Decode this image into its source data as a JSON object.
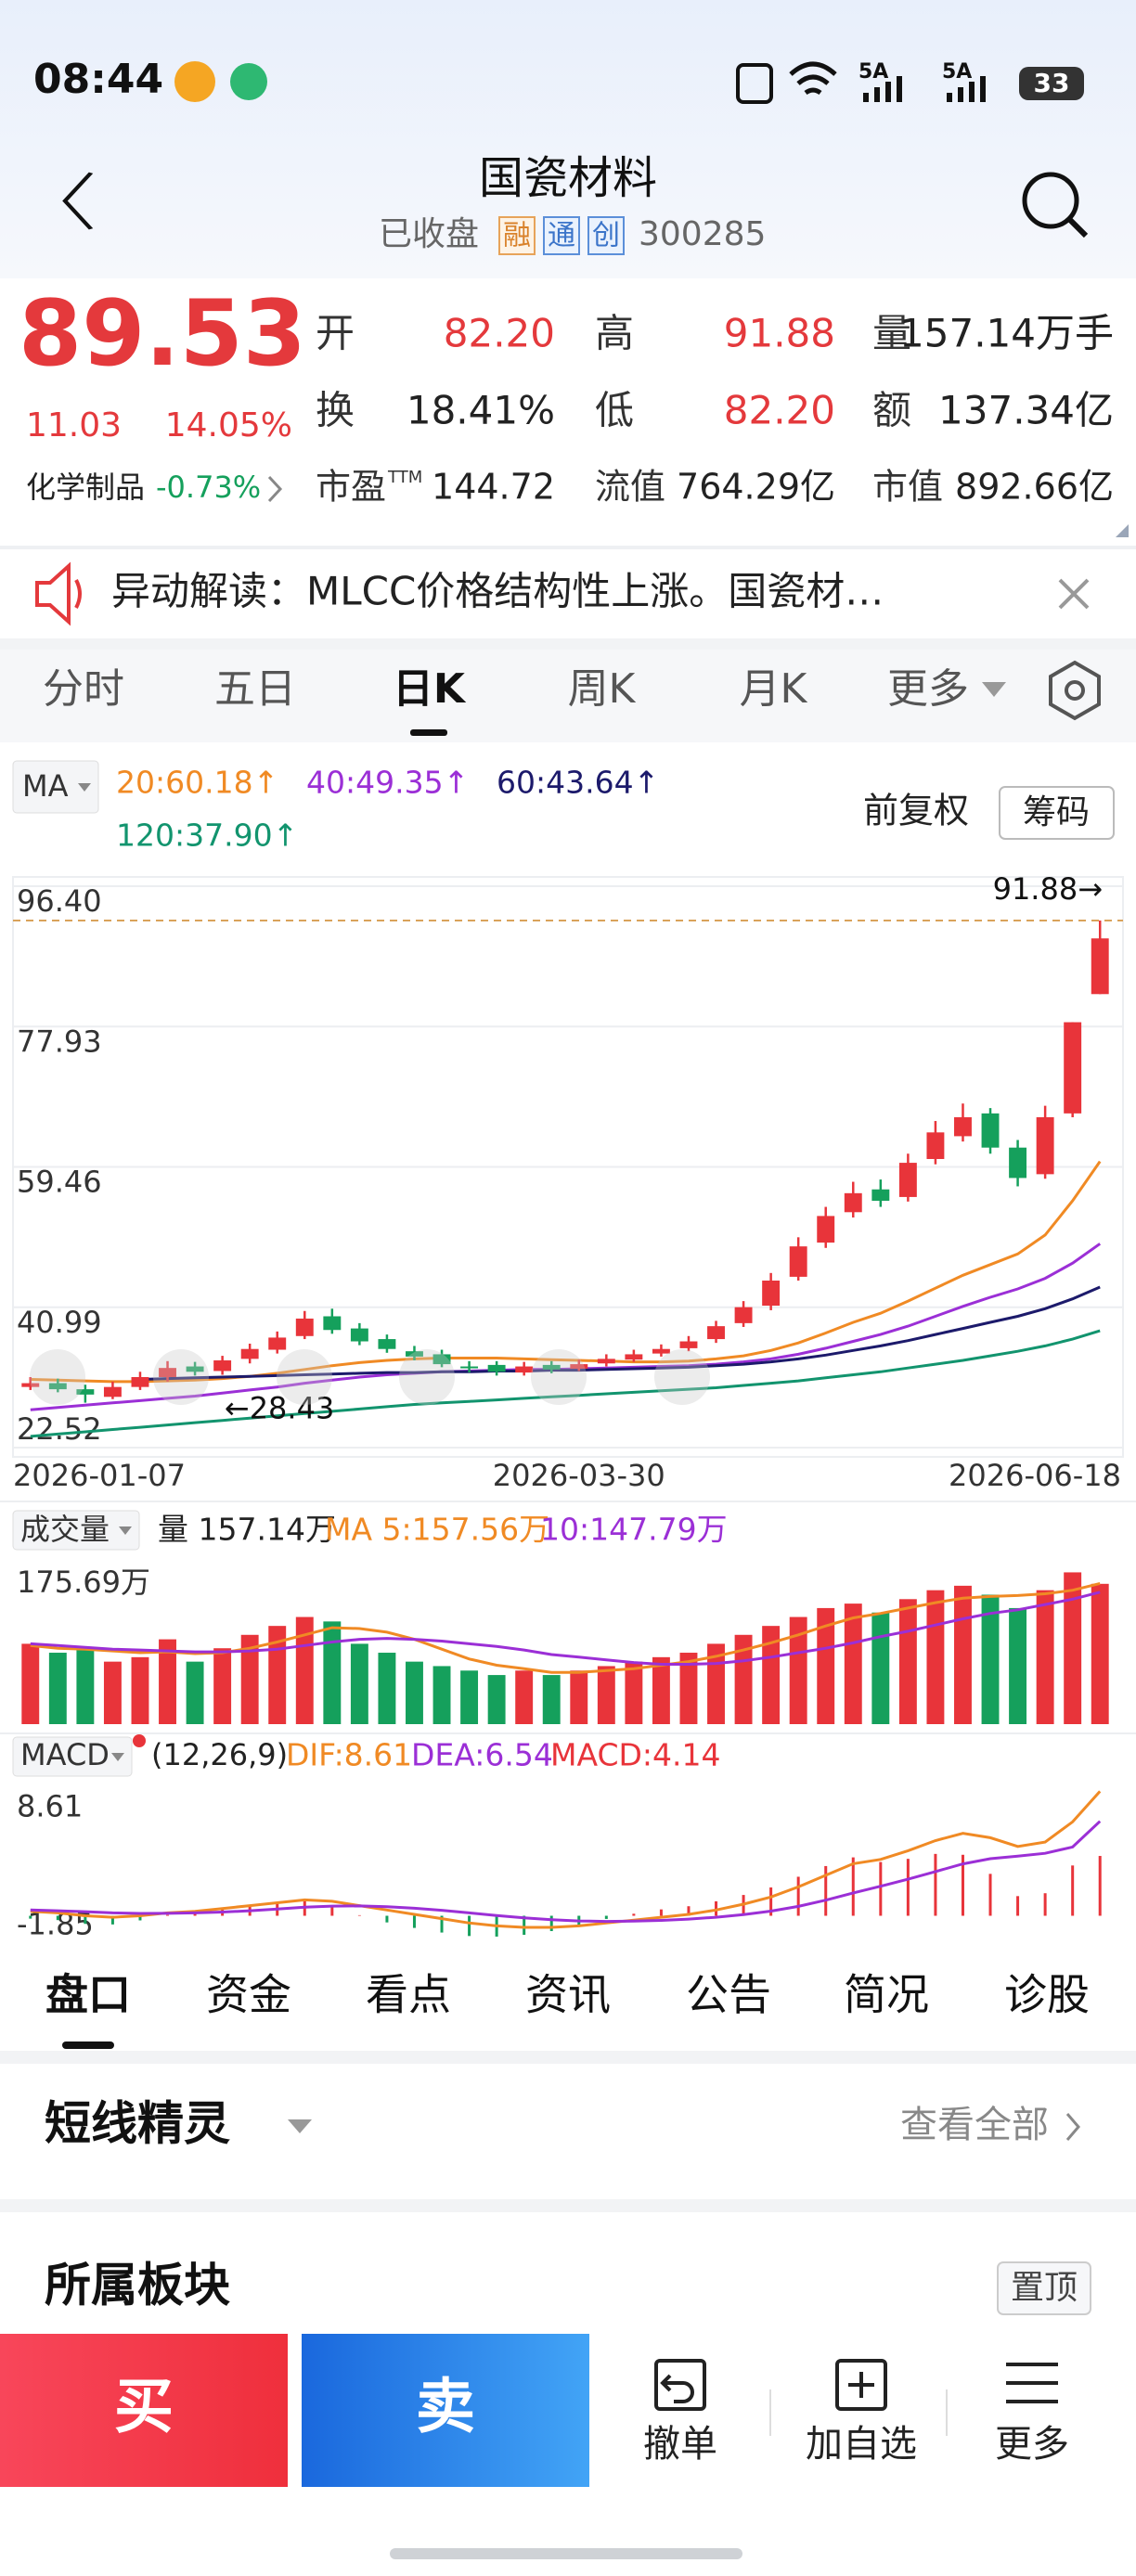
{
  "status": {
    "time": "08:44",
    "signal": [
      "5A",
      "5A"
    ],
    "battery": "33"
  },
  "header": {
    "title": "国瓷材料",
    "state": "已收盘",
    "badges": [
      "融",
      "通",
      "创"
    ],
    "code": "300285"
  },
  "quote": {
    "price": "89.53",
    "change": "11.03",
    "change_pct": "14.05%",
    "sector": "化学制品",
    "sector_change": "-0.73%",
    "fields": [
      {
        "label": "开",
        "value": "82.20",
        "color": "#e4393c"
      },
      {
        "label": "高",
        "value": "91.88",
        "color": "#e4393c"
      },
      {
        "label": "量",
        "value": "157.14万手",
        "color": "#222222"
      },
      {
        "label": "换",
        "value": "18.41%",
        "color": "#222222"
      },
      {
        "label": "低",
        "value": "82.20",
        "color": "#e4393c"
      },
      {
        "label": "额",
        "value": "137.34亿",
        "color": "#222222"
      },
      {
        "label": "市盈",
        "sup": "TTM",
        "value": "144.72",
        "color": "#222222"
      },
      {
        "label": "流值",
        "value": "764.29亿",
        "color": "#222222"
      },
      {
        "label": "市值",
        "value": "892.66亿",
        "color": "#222222"
      }
    ]
  },
  "notice": "异动解读：MLCC价格结构性上涨。国瓷材…",
  "period_tabs": {
    "items": [
      "分时",
      "五日",
      "日K",
      "周K",
      "月K",
      "更多"
    ],
    "selected": 2
  },
  "chart_options": {
    "adjust": "前复权",
    "chips": "筹码"
  },
  "chart_data": [
    {
      "type": "candlestick",
      "indicator": "MA",
      "categories": [
        "2026-01-07",
        null,
        null,
        null,
        null,
        null,
        null,
        null,
        null,
        null,
        null,
        null,
        null,
        null,
        null,
        null,
        null,
        null,
        null,
        null,
        "2026-03-30",
        null,
        null,
        null,
        null,
        null,
        null,
        null,
        null,
        null,
        null,
        null,
        null,
        null,
        null,
        null,
        null,
        null,
        null,
        "2026-06-18"
      ],
      "open": [
        30.5,
        31,
        30.2,
        29.2,
        30.5,
        31.8,
        33.2,
        32.6,
        34.2,
        35.4,
        37.2,
        39.8,
        38.2,
        36.8,
        35.2,
        34.8,
        33.2,
        33.4,
        32.4,
        33.4,
        32.9,
        33.6,
        34.1,
        34.9,
        35.6,
        36.8,
        38.9,
        41.2,
        45,
        49.5,
        53.5,
        56.5,
        55.5,
        60.5,
        63.5,
        66.5,
        62,
        58.5,
        66.5,
        82.2
      ],
      "high": [
        31.8,
        31.6,
        30.8,
        31.2,
        32.5,
        33.9,
        33.8,
        34.6,
        36.2,
        37.8,
        40.5,
        40.8,
        38.9,
        37.4,
        35.9,
        35.4,
        33.9,
        33.9,
        33.8,
        33.9,
        34.1,
        34.8,
        35.4,
        36.1,
        37.2,
        39.2,
        41.8,
        45.5,
        50.2,
        54.2,
        57.5,
        57.8,
        61.2,
        65.5,
        67.8,
        67.2,
        63,
        67.5,
        78.5,
        91.88
      ],
      "low": [
        30.1,
        29.8,
        28.43,
        28.9,
        30.1,
        31.2,
        32,
        32.1,
        33.6,
        34.9,
        36.8,
        37.5,
        36,
        35,
        34,
        33.1,
        32.4,
        32,
        32,
        32.3,
        32.6,
        33.2,
        33.8,
        34.5,
        35.2,
        36.3,
        38.4,
        40.6,
        44.5,
        48.8,
        52.8,
        54.2,
        54.9,
        59.8,
        62.8,
        61.2,
        56.9,
        57.9,
        66,
        82.2
      ],
      "close": [
        31,
        30.2,
        29.5,
        30.5,
        31.8,
        33,
        32.5,
        34,
        35.5,
        37,
        39.5,
        38,
        36.5,
        35.5,
        34.5,
        33.5,
        33,
        32.5,
        33.2,
        32.8,
        33.5,
        34.2,
        34.8,
        35.5,
        36.5,
        38.5,
        41,
        44.5,
        49,
        53,
        56,
        55,
        60,
        64,
        66,
        62,
        58,
        66,
        78.5,
        89.53
      ],
      "up_color": "#e8343a",
      "down_color": "#15a05c",
      "series": [
        {
          "name": "20:60.18↑",
          "color": "#f08a24",
          "values": [
            31.5,
            31.4,
            31.3,
            31.2,
            31.2,
            31.3,
            31.4,
            31.6,
            31.9,
            32.3,
            32.8,
            33.3,
            33.7,
            34,
            34.2,
            34.3,
            34.3,
            34.3,
            34.2,
            34.1,
            34,
            33.9,
            33.8,
            33.8,
            33.9,
            34.2,
            34.6,
            35.3,
            36.3,
            37.6,
            39,
            40.2,
            41.8,
            43.5,
            45.2,
            46.6,
            48,
            50.5,
            55,
            60.18
          ]
        },
        {
          "name": "40:49.35↑",
          "color": "#9b2fd6",
          "values": [
            27.5,
            27.8,
            28.1,
            28.4,
            28.7,
            29,
            29.3,
            29.7,
            30.1,
            30.5,
            31,
            31.4,
            31.8,
            32.1,
            32.3,
            32.5,
            32.6,
            32.7,
            32.8,
            32.8,
            32.9,
            33,
            33.1,
            33.2,
            33.3,
            33.5,
            33.8,
            34.2,
            34.8,
            35.6,
            36.5,
            37.4,
            38.5,
            39.8,
            41.1,
            42.3,
            43.4,
            44.8,
            46.8,
            49.35
          ]
        },
        {
          "name": "60:43.64↑",
          "color": "#1c1a6b",
          "values": [
            null,
            null,
            null,
            null,
            31.5,
            31.6,
            31.7,
            31.8,
            31.9,
            32,
            32.1,
            32.2,
            32.3,
            32.4,
            32.4,
            32.5,
            32.5,
            32.6,
            32.6,
            32.7,
            32.7,
            32.8,
            32.9,
            33,
            33.1,
            33.3,
            33.5,
            33.8,
            34.2,
            34.7,
            35.3,
            35.9,
            36.6,
            37.4,
            38.2,
            39,
            39.8,
            40.8,
            42.1,
            43.64
          ]
        },
        {
          "name": "120:37.90↑",
          "color": "#12946e",
          "values": [
            24,
            24.3,
            24.6,
            24.9,
            25.2,
            25.5,
            25.8,
            26.1,
            26.4,
            26.7,
            27,
            27.3,
            27.6,
            27.9,
            28.2,
            28.4,
            28.6,
            28.8,
            29,
            29.2,
            29.4,
            29.6,
            29.8,
            30,
            30.2,
            30.4,
            30.7,
            31,
            31.3,
            31.7,
            32.1,
            32.5,
            33,
            33.5,
            34,
            34.6,
            35.2,
            35.9,
            36.8,
            37.9
          ]
        }
      ],
      "ylim": [
        22.52,
        96.4
      ],
      "yticks": [
        22.52,
        40.99,
        59.46,
        77.93,
        {
          "value": 96.4,
          "label": "96.40"
        }
      ],
      "annotations": [
        "91.88→",
        "←28.43"
      ],
      "grid": true
    },
    {
      "type": "bar",
      "indicator": "成交量",
      "up_color": "#e8343a",
      "down_color": "#15a05c",
      "series": [
        {
          "name": "量 157.14万",
          "kind": "bar",
          "color": "#222222",
          "values": [
            90,
            80,
            85,
            70,
            75,
            95,
            70,
            85,
            100,
            110,
            120,
            115,
            90,
            80,
            70,
            65,
            60,
            55,
            60,
            55,
            60,
            65,
            70,
            75,
            80,
            90,
            100,
            110,
            120,
            130,
            135,
            125,
            140,
            150,
            155,
            145,
            130,
            150,
            170,
            157.14
          ]
        },
        {
          "name": "MA 5:157.56万",
          "kind": "line",
          "color": "#f08a24",
          "values": [
            88,
            85,
            84,
            82,
            80,
            81,
            79,
            80,
            85,
            92,
            100,
            108,
            107,
            103,
            95,
            84,
            73,
            66,
            62,
            58,
            58,
            60,
            62,
            66,
            70,
            76,
            83,
            91,
            100,
            110,
            119,
            124,
            130,
            136,
            141,
            143,
            144,
            146,
            150,
            157.56
          ]
        },
        {
          "name": "10:147.79万",
          "kind": "line",
          "color": "#9b2fd6",
          "values": [
            90,
            88,
            86,
            84,
            83,
            82,
            81,
            81,
            82,
            84,
            88,
            92,
            95,
            96,
            95,
            93,
            90,
            87,
            83,
            78,
            75,
            72,
            69,
            67,
            67,
            68,
            71,
            75,
            80,
            85,
            91,
            98,
            104,
            111,
            118,
            124,
            128,
            134,
            140,
            147.79
          ]
        }
      ],
      "ylim": [
        0,
        185
      ],
      "yticks": [
        {
          "value": 175.69,
          "label": "175.69万"
        }
      ]
    },
    {
      "type": "bar",
      "indicator": "MACD",
      "params": "(12,26,9)",
      "up_color": "#e8343a",
      "down_color": "#15a05c",
      "series": [
        {
          "name": "DIF:8.61",
          "kind": "line",
          "color": "#f08a24",
          "values": [
            0.3,
            0.2,
            0,
            -0.1,
            0,
            0.2,
            0.3,
            0.5,
            0.7,
            0.9,
            1.1,
            1.0,
            0.7,
            0.4,
            0.1,
            -0.2,
            -0.5,
            -0.7,
            -0.8,
            -0.8,
            -0.7,
            -0.5,
            -0.3,
            -0.1,
            0.1,
            0.4,
            0.8,
            1.3,
            2,
            2.8,
            3.6,
            3.9,
            4.5,
            5.2,
            5.7,
            5.4,
            4.8,
            5.1,
            6.5,
            8.61
          ]
        },
        {
          "name": "DEA:6.54",
          "kind": "line",
          "color": "#9b2fd6",
          "values": [
            0.4,
            0.35,
            0.28,
            0.2,
            0.16,
            0.17,
            0.2,
            0.26,
            0.35,
            0.46,
            0.59,
            0.67,
            0.68,
            0.63,
            0.52,
            0.38,
            0.2,
            0.02,
            -0.14,
            -0.27,
            -0.36,
            -0.39,
            -0.37,
            -0.32,
            -0.23,
            -0.1,
            0.08,
            0.32,
            0.65,
            1.08,
            1.58,
            2.04,
            2.53,
            3.06,
            3.59,
            3.95,
            4.12,
            4.32,
            4.76,
            6.54
          ]
        },
        {
          "name": "MACD:4.14",
          "kind": "bar",
          "color": "#e8343a",
          "values": [
            -0.2,
            -0.3,
            -0.56,
            -0.6,
            -0.32,
            0.06,
            0.2,
            0.48,
            0.7,
            0.88,
            1.02,
            0.66,
            0.04,
            -0.46,
            -0.84,
            -1.16,
            -1.4,
            -1.44,
            -1.32,
            -1.06,
            -0.68,
            -0.22,
            0.14,
            0.44,
            0.66,
            1.0,
            1.44,
            1.96,
            2.7,
            3.44,
            4.04,
            3.72,
            3.94,
            4.28,
            4.22,
            2.9,
            1.36,
            1.56,
            3.48,
            4.14
          ]
        }
      ],
      "ylim": [
        -2.6,
        9.6
      ],
      "yticks": [
        -1.85,
        8.61
      ]
    }
  ],
  "detail_tabs": {
    "items": [
      "盘口",
      "资金",
      "看点",
      "资讯",
      "公告",
      "简况",
      "诊股"
    ],
    "selected": 0
  },
  "sections": {
    "spirit": "短线精灵",
    "view_all": "查看全部",
    "sector_block": "所属板块",
    "pin": "置顶"
  },
  "actions": {
    "buy": "买",
    "sell": "卖",
    "cancel": "撤单",
    "watch": "加自选",
    "more": "更多"
  }
}
